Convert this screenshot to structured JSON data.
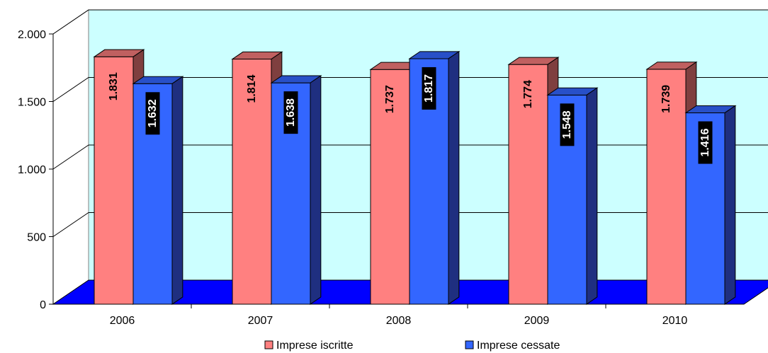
{
  "chart_data": {
    "type": "bar",
    "categories": [
      "2006",
      "2007",
      "2008",
      "2009",
      "2010"
    ],
    "series": [
      {
        "name": "Imprese iscritte",
        "values": [
          1831,
          1814,
          1737,
          1774,
          1739
        ],
        "labels": [
          "1.831",
          "1.814",
          "1.737",
          "1.774",
          "1.739"
        ]
      },
      {
        "name": "Imprese cessate",
        "values": [
          1632,
          1638,
          1817,
          1548,
          1416
        ],
        "labels": [
          "1.632",
          "1.638",
          "1.817",
          "1.548",
          "1.416"
        ]
      }
    ],
    "yticks": [
      0,
      500,
      1000,
      1500,
      2000
    ],
    "ytick_labels": [
      "0",
      "500",
      "1.000",
      "1.500",
      "2.000"
    ],
    "ylim": [
      0,
      2000
    ],
    "title": "",
    "xlabel": "",
    "ylabel": "",
    "grid": true,
    "legend_position": "bottom",
    "three_d": true,
    "colors": {
      "iscritte_front": "#ff8080",
      "iscritte_side": "#7f3f3f",
      "iscritte_top": "#c06060",
      "cessate_front": "#3366ff",
      "cessate_side": "#1f2f80",
      "cessate_top": "#2850c8",
      "back_wall": "#ccffff",
      "floor": "#0000ff",
      "wall_edge": "#808080"
    }
  }
}
